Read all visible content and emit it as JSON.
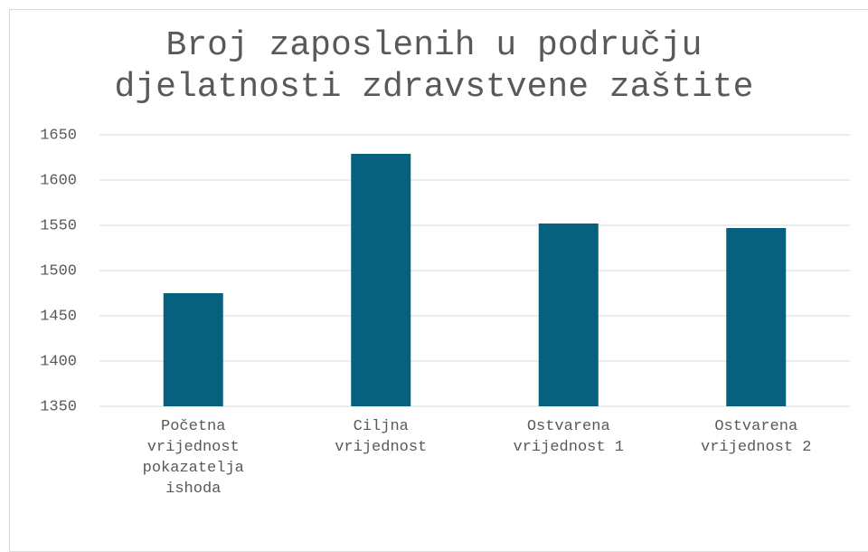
{
  "chart_data": {
    "type": "bar",
    "title": "Broj zaposlenih u području djelatnosti zdravstvene zaštite",
    "categories": [
      "Početna vrijednost pokazatelja ishoda",
      "Ciljna vrijednost",
      "Ostvarena vrijednost 1",
      "Ostvarena vrijednost 2"
    ],
    "values": [
      1475,
      1629,
      1552,
      1547
    ],
    "color": "#08607f",
    "ylim": [
      1350,
      1650
    ],
    "yticks": [
      1350,
      1400,
      1450,
      1500,
      1550,
      1600,
      1650
    ],
    "grid": true
  }
}
